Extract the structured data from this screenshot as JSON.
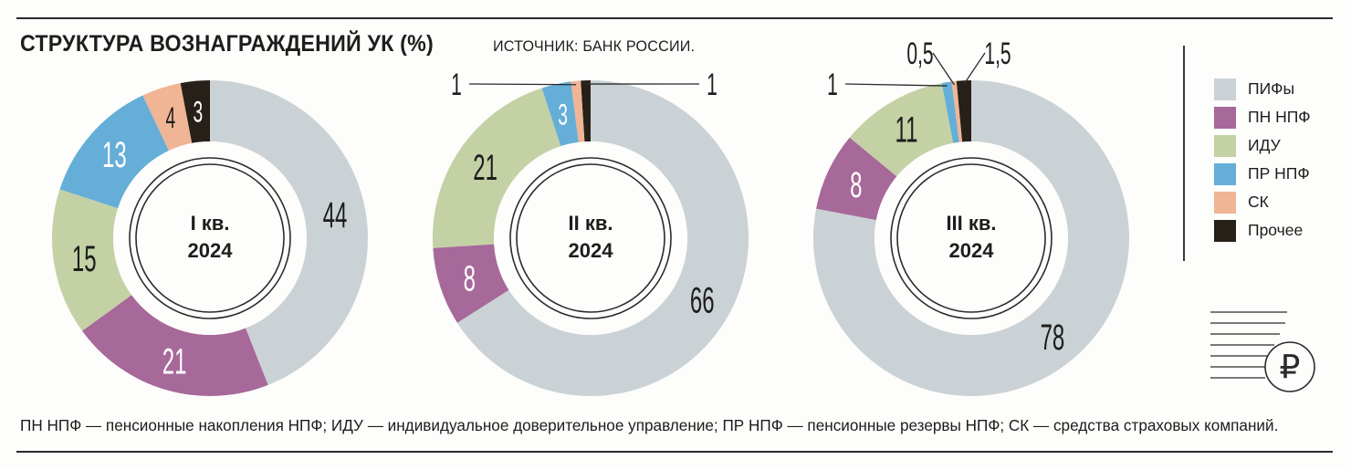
{
  "title": "СТРУКТУРА ВОЗНАГРАЖДЕНИЙ УК (%)",
  "source": "ИСТОЧНИК: БАНК РОССИИ.",
  "footnote": "ПН НПФ — пенсионные накопления НПФ; ИДУ — индивидуальное доверительное управление; ПР НПФ — пенсионные резервы НПФ; СК — средства страховых компаний.",
  "colors": {
    "ПИФы": "#cbd2d6",
    "ПН НПФ": "#a7689a",
    "ИДУ": "#c3d1a5",
    "ПР НПФ": "#64aed8",
    "СК": "#efb595",
    "Прочее": "#272019"
  },
  "legend": [
    {
      "label": "ПИФы",
      "color": "#cbd2d6"
    },
    {
      "label": "ПН НПФ",
      "color": "#a7689a"
    },
    {
      "label": "ИДУ",
      "color": "#c3d1a5"
    },
    {
      "label": "ПР НПФ",
      "color": "#64aed8"
    },
    {
      "label": "СК",
      "color": "#efb595"
    },
    {
      "label": "Прочее",
      "color": "#272019"
    }
  ],
  "chart_data": [
    {
      "type": "pie",
      "title_line1": "I кв.",
      "title_line2": "2024",
      "slices": [
        {
          "name": "ПИФы",
          "value": 44,
          "label": "44"
        },
        {
          "name": "ПН НПФ",
          "value": 21,
          "label": "21"
        },
        {
          "name": "ИДУ",
          "value": 15,
          "label": "15"
        },
        {
          "name": "ПР НПФ",
          "value": 13,
          "label": "13"
        },
        {
          "name": "СК",
          "value": 4,
          "label": "4"
        },
        {
          "name": "Прочее",
          "value": 3,
          "label": "3"
        }
      ]
    },
    {
      "type": "pie",
      "title_line1": "II кв.",
      "title_line2": "2024",
      "slices": [
        {
          "name": "ПИФы",
          "value": 66,
          "label": "66"
        },
        {
          "name": "ПН НПФ",
          "value": 8,
          "label": "8"
        },
        {
          "name": "ИДУ",
          "value": 21,
          "label": "21"
        },
        {
          "name": "ПР НПФ",
          "value": 3,
          "label": "3"
        },
        {
          "name": "СК",
          "value": 1,
          "label": "1"
        },
        {
          "name": "Прочее",
          "value": 1,
          "label": "1"
        }
      ]
    },
    {
      "type": "pie",
      "title_line1": "III кв.",
      "title_line2": "2024",
      "slices": [
        {
          "name": "ПИФы",
          "value": 78,
          "label": "78"
        },
        {
          "name": "ПН НПФ",
          "value": 8,
          "label": "8"
        },
        {
          "name": "ИДУ",
          "value": 11,
          "label": "11"
        },
        {
          "name": "ПР НПФ",
          "value": 1,
          "label": "1"
        },
        {
          "name": "СК",
          "value": 0.5,
          "label": "0,5"
        },
        {
          "name": "Прочее",
          "value": 1.5,
          "label": "1,5"
        }
      ]
    }
  ]
}
